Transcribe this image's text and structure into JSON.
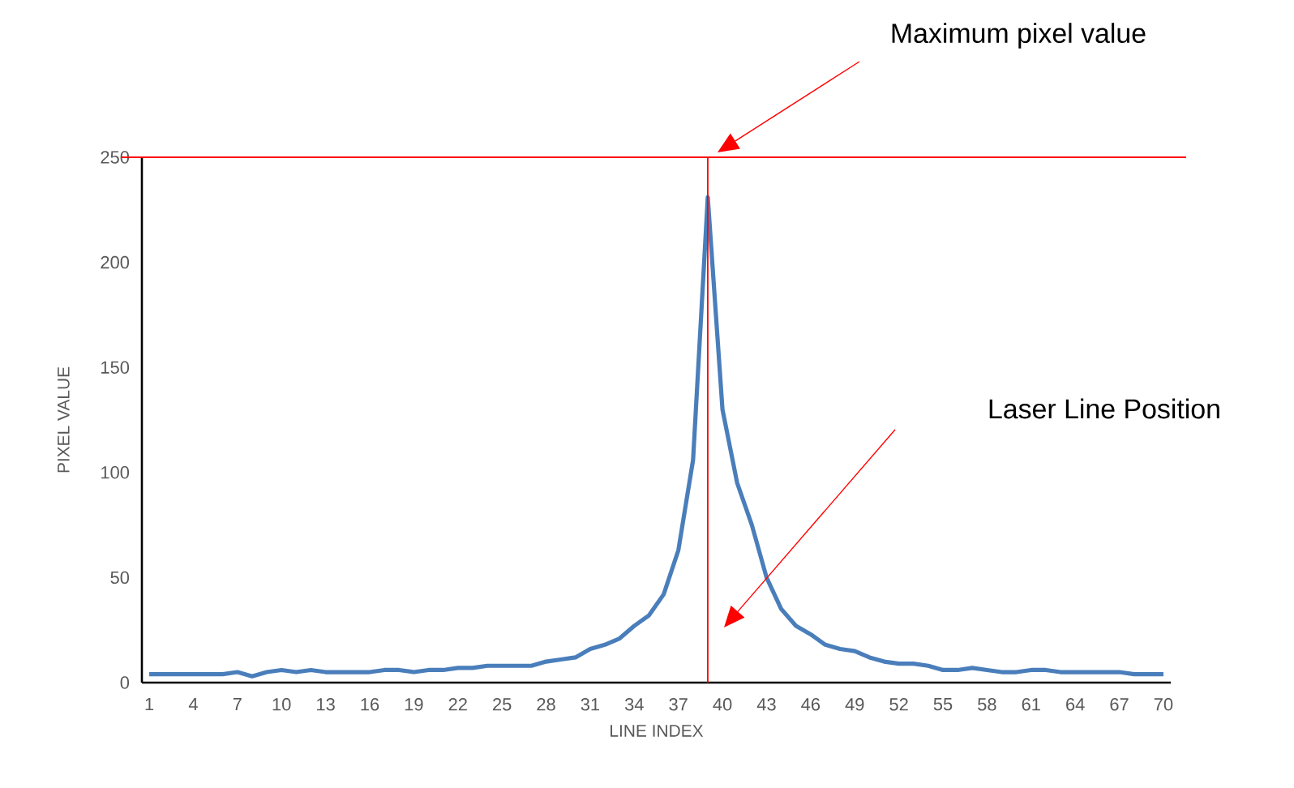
{
  "chart_data": {
    "type": "line",
    "xlabel": "LINE INDEX",
    "ylabel": "PIXEL VALUE",
    "color": "#4a7ebb",
    "x": [
      1,
      2,
      3,
      4,
      5,
      6,
      7,
      8,
      9,
      10,
      11,
      12,
      13,
      14,
      15,
      16,
      17,
      18,
      19,
      20,
      21,
      22,
      23,
      24,
      25,
      26,
      27,
      28,
      29,
      30,
      31,
      32,
      33,
      34,
      35,
      36,
      37,
      38,
      39,
      40,
      41,
      42,
      43,
      44,
      45,
      46,
      47,
      48,
      49,
      50,
      51,
      52,
      53,
      54,
      55,
      56,
      57,
      58,
      59,
      60,
      61,
      62,
      63,
      64,
      65,
      66,
      67,
      68,
      69,
      70
    ],
    "values": [
      4,
      4,
      4,
      4,
      4,
      4,
      5,
      3,
      5,
      6,
      5,
      6,
      5,
      5,
      5,
      5,
      6,
      6,
      5,
      6,
      6,
      7,
      7,
      8,
      8,
      8,
      8,
      10,
      11,
      12,
      16,
      18,
      21,
      27,
      32,
      42,
      63,
      106,
      231,
      130,
      95,
      75,
      50,
      35,
      27,
      23,
      18,
      16,
      15,
      12,
      10,
      9,
      9,
      8,
      6,
      6,
      7,
      6,
      5,
      5,
      6,
      6,
      5,
      5,
      5,
      5,
      5,
      4,
      4,
      4
    ],
    "xlim": [
      0.5,
      70.5
    ],
    "xticks": [
      1,
      4,
      7,
      10,
      13,
      16,
      19,
      22,
      25,
      28,
      31,
      34,
      37,
      40,
      43,
      46,
      49,
      52,
      55,
      58,
      61,
      64,
      67,
      70
    ],
    "ylim": [
      0,
      250
    ],
    "yticks": [
      0,
      50,
      100,
      150,
      200,
      250
    ],
    "ref_lines": [
      {
        "axis": "y",
        "value": 250,
        "color": "#ff0000"
      },
      {
        "axis": "x",
        "value": 39,
        "color": "#ff0000"
      }
    ],
    "annotations": [
      "Maximum pixel value",
      "Laser Line Position"
    ]
  }
}
